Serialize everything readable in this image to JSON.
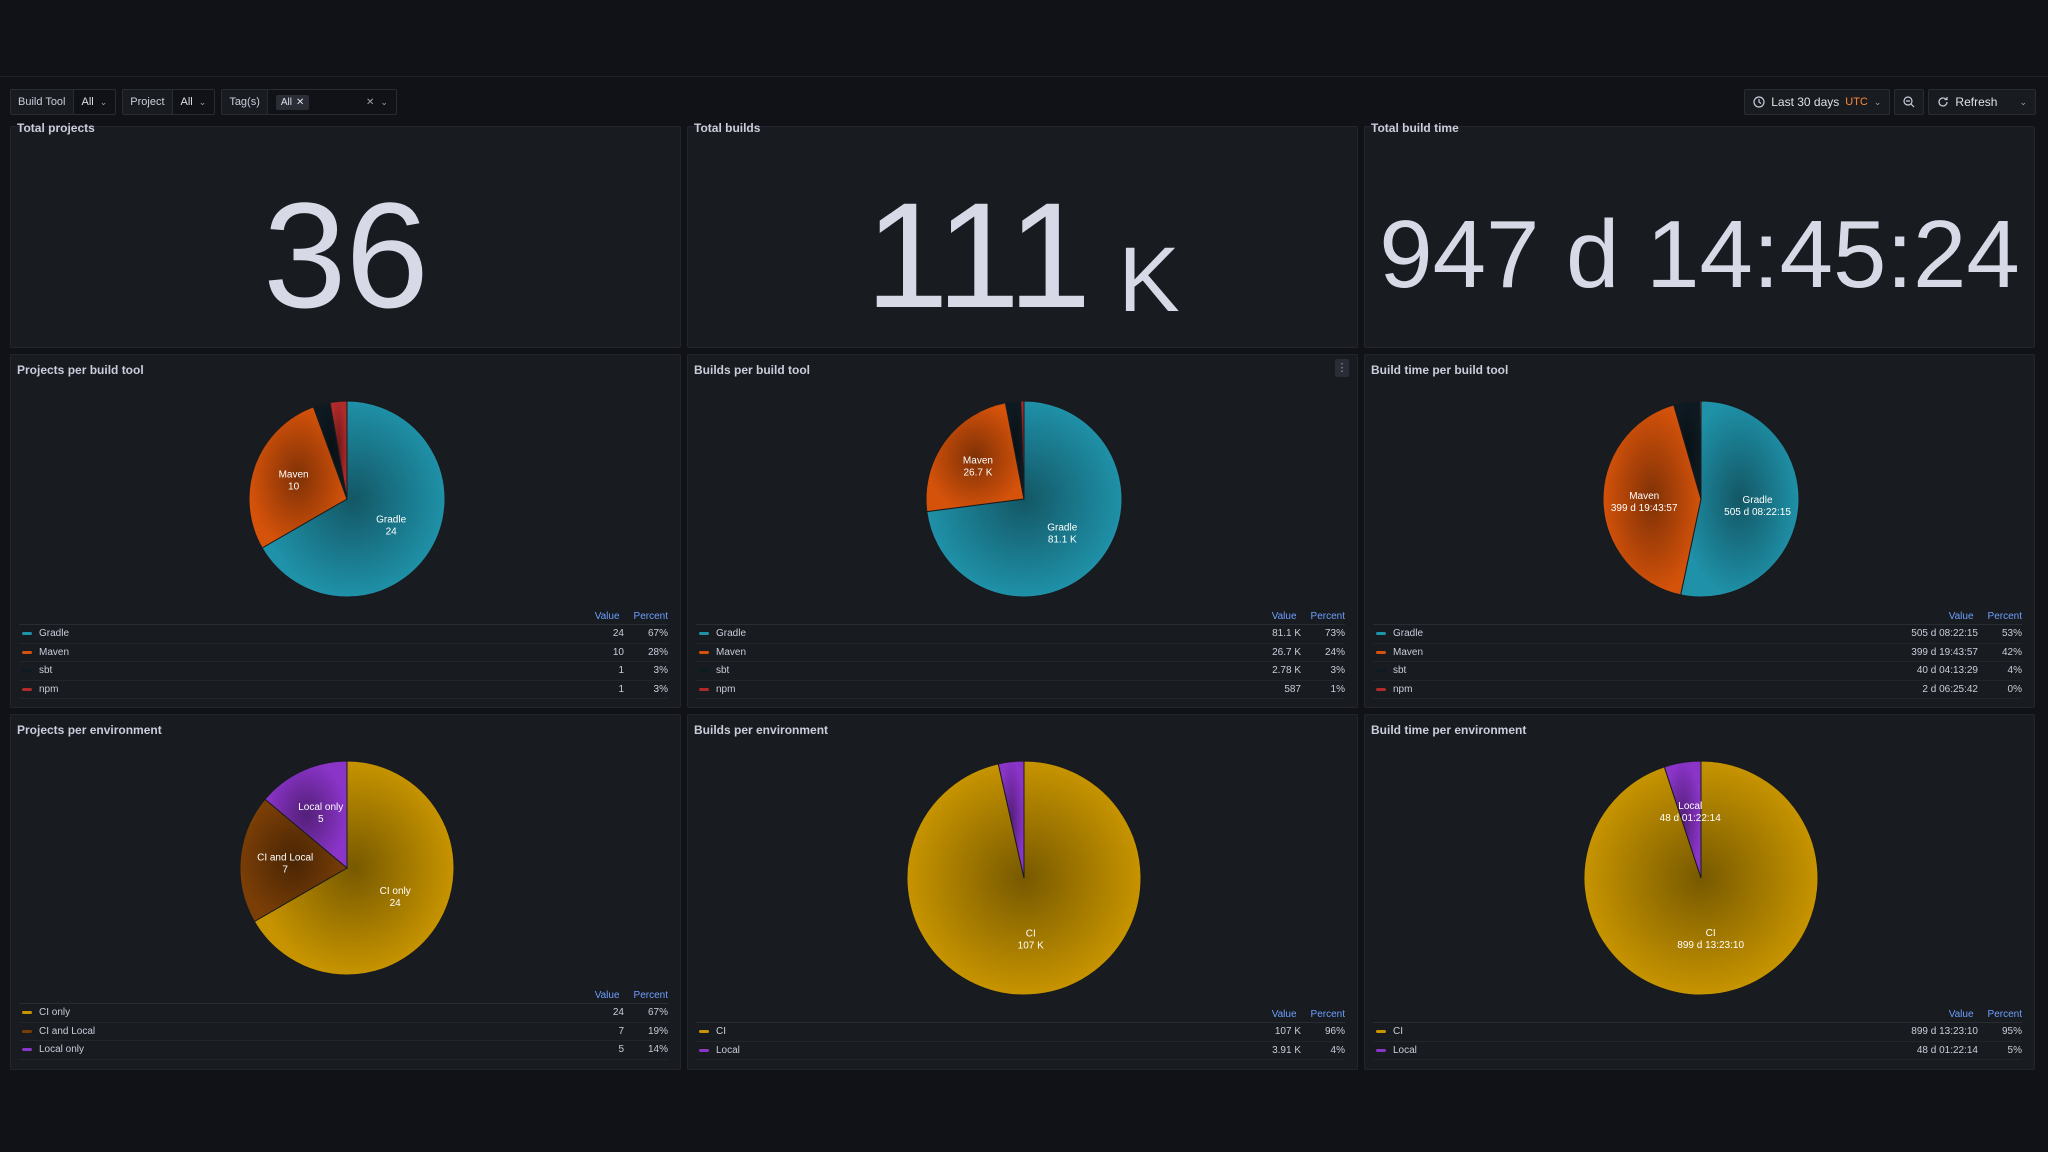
{
  "variables": {
    "build_tool": {
      "label": "Build Tool",
      "value": "All"
    },
    "project": {
      "label": "Project",
      "value": "All"
    },
    "tags": {
      "label": "Tag(s)",
      "chip": "All"
    }
  },
  "time": {
    "range": "Last 30 days",
    "tz": "UTC"
  },
  "refresh": {
    "label": "Refresh"
  },
  "icons": [
    "clock-icon",
    "chevron-down-icon",
    "zoom-out-icon",
    "refresh-icon",
    "close-icon",
    "kebab-menu-icon"
  ],
  "colors": {
    "gradle": "#1f91a8",
    "maven": "#d4520a",
    "sbt": "#0e1a22",
    "npm": "#b02a2a",
    "ci_only": "#c79400",
    "ci_and_local": "#7a3e06",
    "local_only": "#8a34c8",
    "ci": "#c79400",
    "local": "#8a34c8"
  },
  "stats": {
    "total_projects": {
      "title": "Total projects",
      "value": "36",
      "unit": ""
    },
    "total_builds": {
      "title": "Total builds",
      "value": "111",
      "unit": "K"
    },
    "total_build_time": {
      "title": "Total build time",
      "value": "947 d 14:45:24",
      "unit": ""
    }
  },
  "legend_headers": {
    "value": "Value",
    "percent": "Percent"
  },
  "chart_data": [
    {
      "type": "pie",
      "title": "Projects per build tool",
      "slices": [
        {
          "name": "Gradle",
          "value": 24,
          "display": "24",
          "percent": "67%",
          "label": "Gradle|24",
          "color": "#1f91a8"
        },
        {
          "name": "Maven",
          "value": 10,
          "display": "10",
          "percent": "28%",
          "label": "Maven|10",
          "color": "#d4520a"
        },
        {
          "name": "sbt",
          "value": 1,
          "display": "1",
          "percent": "3%",
          "label": "",
          "color": "#0e1a22"
        },
        {
          "name": "npm",
          "value": 1,
          "display": "1",
          "percent": "3%",
          "label": "",
          "color": "#b02a2a"
        }
      ]
    },
    {
      "type": "pie",
      "title": "Builds per build tool",
      "slices": [
        {
          "name": "Gradle",
          "value": 81100,
          "display": "81.1 K",
          "percent": "73%",
          "label": "Gradle|81.1 K",
          "color": "#1f91a8"
        },
        {
          "name": "Maven",
          "value": 26700,
          "display": "26.7 K",
          "percent": "24%",
          "label": "Maven|26.7 K",
          "color": "#d4520a"
        },
        {
          "name": "sbt",
          "value": 2780,
          "display": "2.78 K",
          "percent": "3%",
          "label": "",
          "color": "#0e1a22"
        },
        {
          "name": "npm",
          "value": 587,
          "display": "587",
          "percent": "1%",
          "label": "",
          "color": "#b02a2a"
        }
      ]
    },
    {
      "type": "pie",
      "title": "Build time per build tool",
      "slices": [
        {
          "name": "Gradle",
          "value": 505.35,
          "display": "505 d 08:22:15",
          "percent": "53%",
          "label": "Gradle|505 d 08:22:15",
          "color": "#1f91a8"
        },
        {
          "name": "Maven",
          "value": 399.82,
          "display": "399 d 19:43:57",
          "percent": "42%",
          "label": "Maven|399 d 19:43:57",
          "color": "#d4520a"
        },
        {
          "name": "sbt",
          "value": 40.18,
          "display": "40 d 04:13:29",
          "percent": "4%",
          "label": "",
          "color": "#0e1a22"
        },
        {
          "name": "npm",
          "value": 2.27,
          "display": "2 d 06:25:42",
          "percent": "0%",
          "label": "",
          "color": "#b02a2a"
        }
      ]
    },
    {
      "type": "pie",
      "title": "Projects per environment",
      "slices": [
        {
          "name": "CI only",
          "value": 24,
          "display": "24",
          "percent": "67%",
          "label": "CI only|24",
          "color": "#c79400"
        },
        {
          "name": "CI and Local",
          "value": 7,
          "display": "7",
          "percent": "19%",
          "label": "CI and Local|7",
          "color": "#7a3e06"
        },
        {
          "name": "Local only",
          "value": 5,
          "display": "5",
          "percent": "14%",
          "label": "Local only|5",
          "color": "#8a34c8"
        }
      ]
    },
    {
      "type": "pie",
      "title": "Builds per environment",
      "slices": [
        {
          "name": "CI",
          "value": 107000,
          "display": "107 K",
          "percent": "96%",
          "label": "CI|107 K",
          "color": "#c79400"
        },
        {
          "name": "Local",
          "value": 3910,
          "display": "3.91 K",
          "percent": "4%",
          "label": "",
          "color": "#8a34c8"
        }
      ]
    },
    {
      "type": "pie",
      "title": "Build time per environment",
      "slices": [
        {
          "name": "CI",
          "value": 899.56,
          "display": "899 d 13:23:10",
          "percent": "95%",
          "label": "CI|899 d 13:23:10",
          "color": "#c79400"
        },
        {
          "name": "Local",
          "value": 48.06,
          "display": "48 d 01:22:14",
          "percent": "5%",
          "label": "Local|48 d 01:22:14",
          "color": "#8a34c8"
        }
      ]
    }
  ]
}
